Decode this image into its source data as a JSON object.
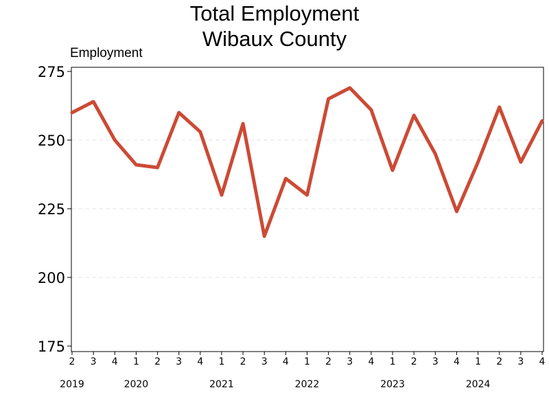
{
  "chart_data": {
    "type": "line",
    "title": "Total Employment",
    "subtitle": "Wibaux County",
    "ylabel": "Employment",
    "xlabel": "",
    "ylim": [
      175,
      275
    ],
    "yticks": [
      175,
      200,
      225,
      250,
      275
    ],
    "grid": true,
    "legend": "none",
    "x": [
      "2019 Q2",
      "2019 Q3",
      "2019 Q4",
      "2020 Q1",
      "2020 Q2",
      "2020 Q3",
      "2020 Q4",
      "2021 Q1",
      "2021 Q2",
      "2021 Q3",
      "2021 Q4",
      "2022 Q1",
      "2022 Q2",
      "2022 Q3",
      "2022 Q4",
      "2023 Q1",
      "2023 Q2",
      "2023 Q3",
      "2023 Q4",
      "2024 Q1",
      "2024 Q2",
      "2024 Q3",
      "2024 Q4"
    ],
    "quarter_labels": [
      "2",
      "3",
      "4",
      "1",
      "2",
      "3",
      "4",
      "1",
      "2",
      "3",
      "4",
      "1",
      "2",
      "3",
      "4",
      "1",
      "2",
      "3",
      "4",
      "1",
      "2",
      "3",
      "4"
    ],
    "year_labels": [
      {
        "label": "2019",
        "index": 0
      },
      {
        "label": "2020",
        "index": 3
      },
      {
        "label": "2021",
        "index": 7
      },
      {
        "label": "2022",
        "index": 11
      },
      {
        "label": "2023",
        "index": 15
      },
      {
        "label": "2024",
        "index": 19
      }
    ],
    "series": [
      {
        "values": [
          260,
          264,
          250,
          241,
          240,
          260,
          253,
          230,
          256,
          215,
          236,
          230,
          265,
          269,
          261,
          239,
          259,
          245,
          224,
          242,
          262,
          242,
          257
        ],
        "color": "#cc4a35"
      }
    ]
  }
}
